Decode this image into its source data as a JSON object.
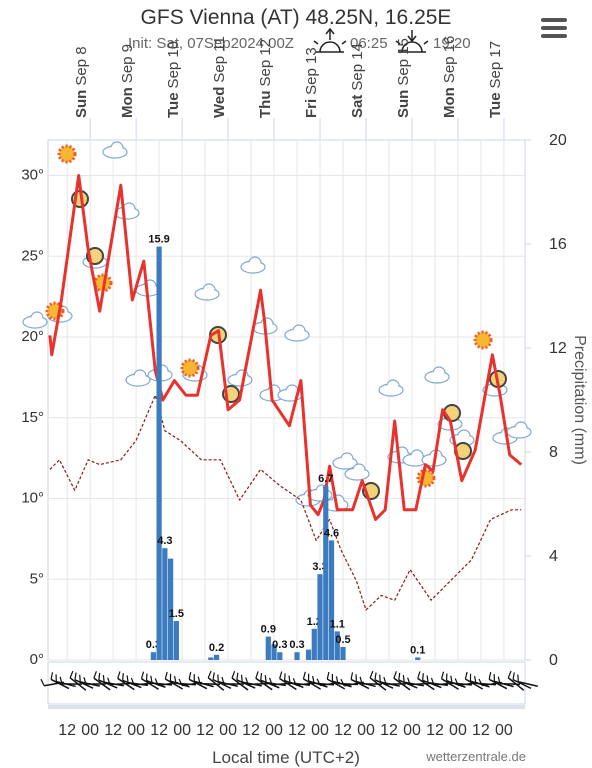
{
  "chart_data": {
    "type": "line",
    "title": "GFS Vienna (AT) 48.25N, 16.25E",
    "subtitle": "Init: Sat, 07Sep2024 00Z",
    "sunrise": "06:25",
    "sunset": "19:20",
    "x_label": "Local time (UTC+2)",
    "y2_label": "Precipitation (mm)",
    "credit": "wetterzentrale.de",
    "xlim": [
      2,
      251
    ],
    "xticks": [
      12,
      {
        "value": 24,
        "label": "00"
      },
      {
        "value": 36,
        "label": "12"
      },
      {
        "value": 48,
        "label": "00"
      },
      {
        "value": 60,
        "label": "12"
      },
      {
        "value": 72,
        "label": "00"
      },
      {
        "value": 84,
        "label": "12"
      },
      {
        "value": 96,
        "label": "00"
      },
      {
        "value": 108,
        "label": "12"
      },
      {
        "value": 120,
        "label": "00"
      },
      {
        "value": 132,
        "label": "12"
      },
      {
        "value": 144,
        "label": "00"
      },
      {
        "value": 156,
        "label": "12"
      },
      {
        "value": 168,
        "label": "00"
      },
      {
        "value": 180,
        "label": "12"
      },
      {
        "value": 192,
        "label": "00"
      },
      {
        "value": 204,
        "label": "12"
      },
      {
        "value": 216,
        "label": "00"
      },
      {
        "value": 228,
        "label": "12"
      },
      {
        "value": 240,
        "label": "00"
      }
    ],
    "day_labels": [
      {
        "value": 24,
        "day": "Sun",
        "date": "Sep 8"
      },
      {
        "value": 48,
        "day": "Mon",
        "date": "Sep 9"
      },
      {
        "value": 72,
        "day": "Tue",
        "date": "Sep 10"
      },
      {
        "value": 96,
        "day": "Wed",
        "date": "Sep 11"
      },
      {
        "value": 120,
        "day": "Thu",
        "date": "Sep 12"
      },
      {
        "value": 144,
        "day": "Fri",
        "date": "Sep 13"
      },
      {
        "value": 168,
        "day": "Sat",
        "date": "Sep 14"
      },
      {
        "value": 192,
        "day": "Sun",
        "date": "Sep 15"
      },
      {
        "value": 216,
        "day": "Mon",
        "date": "Sep 16"
      },
      {
        "value": 240,
        "day": "Tue",
        "date": "Sep 17"
      }
    ],
    "ylim": [
      0,
      32.2
    ],
    "yticks": [
      {
        "value": 0,
        "label": "0°"
      },
      {
        "value": 5,
        "label": "5°"
      },
      {
        "value": 10,
        "label": "10°"
      },
      {
        "value": 15,
        "label": "15°"
      },
      {
        "value": 20,
        "label": "20°"
      },
      {
        "value": 25,
        "label": "25°"
      },
      {
        "value": 30,
        "label": "30°"
      }
    ],
    "y2lim": [
      0,
      20
    ],
    "y2ticks": [
      0,
      4,
      8,
      12,
      16,
      20
    ],
    "grid": true,
    "series": [
      {
        "kind": "line",
        "color": "#e8322d",
        "x": [
          3,
          4,
          9,
          18,
          23,
          29,
          40,
          46,
          52,
          58,
          62,
          68,
          74,
          80,
          87,
          91,
          96,
          102,
          113,
          115,
          119,
          128,
          134,
          139,
          143,
          146,
          149,
          153,
          161,
          166,
          173,
          178,
          183,
          188,
          194,
          199,
          203,
          208,
          212,
          218,
          225,
          234,
          238,
          243,
          249
        ],
        "values": [
          20.1,
          18.9,
          22.3,
          30,
          25.4,
          21.6,
          29.4,
          22.3,
          24.7,
          17.9,
          16.1,
          17.3,
          16.4,
          16.4,
          20.1,
          20.4,
          15.5,
          16.1,
          22.9,
          21,
          16.1,
          14.5,
          17.3,
          9.6,
          9,
          9.9,
          12,
          9.3,
          9.3,
          11.1,
          8.7,
          9.3,
          14.8,
          9.3,
          9.3,
          12.1,
          11.7,
          15.5,
          14.8,
          11.1,
          13,
          18.9,
          16.4,
          12.7,
          12.1
        ]
      },
      {
        "kind": "dashed",
        "color": "#8b1a1a",
        "x": [
          3,
          8,
          16,
          23,
          29,
          40,
          48,
          58,
          63,
          71,
          82,
          92,
          102,
          113,
          123,
          134,
          142,
          149,
          155,
          163,
          168,
          176,
          183,
          191,
          202,
          212,
          223,
          233,
          244,
          249
        ],
        "values": [
          11.8,
          12.4,
          10.5,
          12.4,
          12.1,
          12.4,
          13.6,
          16.4,
          14.2,
          13.6,
          12.4,
          12.4,
          9.9,
          11.8,
          10.8,
          9.9,
          7.4,
          8.7,
          6.8,
          4.9,
          3.1,
          4,
          3.7,
          5.6,
          3.7,
          4.9,
          6.2,
          8.7,
          9.3,
          9.3
        ]
      },
      {
        "kind": "bar",
        "axis": "y2",
        "color": "#3d7bbf",
        "x": [
          57,
          60,
          63,
          66,
          69,
          87,
          90,
          117,
          120,
          123,
          132,
          138,
          141,
          144,
          147,
          150,
          153,
          156,
          195
        ],
        "values": [
          0.3,
          15.9,
          4.3,
          3.9,
          1.5,
          0.1,
          0.2,
          0.9,
          0.6,
          0.3,
          0.3,
          0.4,
          1.2,
          3.3,
          6.7,
          4.6,
          1.1,
          0.5,
          0.1
        ],
        "value_labels": [
          "0.3",
          "15.9",
          "4.3",
          null,
          "1.5",
          null,
          "0.2",
          "0.9",
          null,
          "0.3",
          "0.3",
          null,
          "1.2",
          "3.3",
          "6.7",
          "4.6",
          "1.1",
          "0.5",
          "0.1"
        ]
      }
    ]
  }
}
